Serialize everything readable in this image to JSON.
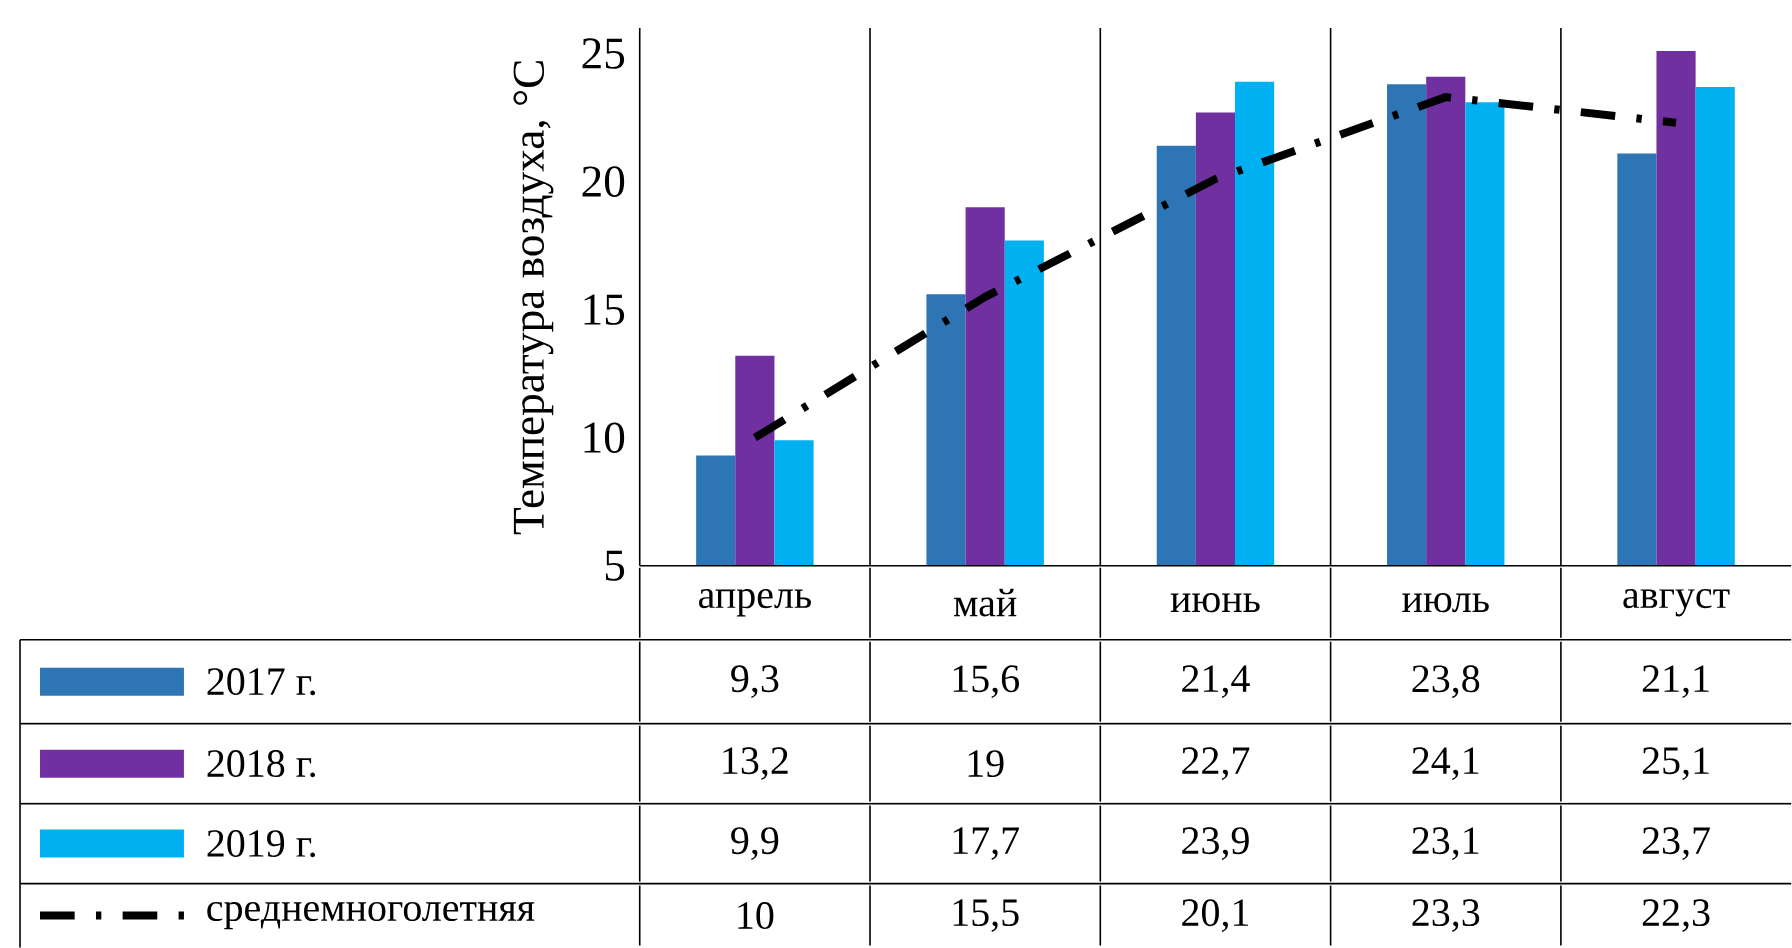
{
  "chart_data": {
    "type": "bar",
    "ylabel": "Температура воздуха, °С",
    "categories": [
      "апрель",
      "май",
      "июнь",
      "июль",
      "август"
    ],
    "ylim": [
      5,
      26
    ],
    "yticks": [
      5,
      10,
      15,
      20,
      25
    ],
    "legend": "bottom",
    "series": [
      {
        "name": "2017 г.",
        "color": "#2e75b6",
        "values": [
          9.3,
          15.6,
          21.4,
          23.8,
          21.1
        ],
        "value_labels": [
          "9,3",
          "15,6",
          "21,4",
          "23,8",
          "21,1"
        ]
      },
      {
        "name": "2018 г.",
        "color": "#7030a0",
        "values": [
          13.2,
          19,
          22.7,
          24.1,
          25.1
        ],
        "value_labels": [
          "13,2",
          "19",
          "22,7",
          "24,1",
          "25,1"
        ]
      },
      {
        "name": "2019 г.",
        "color": "#00b0f0",
        "values": [
          9.9,
          17.7,
          23.9,
          23.1,
          23.7
        ],
        "value_labels": [
          "9,9",
          "17,7",
          "23,9",
          "23,1",
          "23,7"
        ]
      },
      {
        "name": "среднемноголетняя",
        "type": "line",
        "color": "#000000",
        "line_style": "dashed",
        "values": [
          10,
          15.5,
          20.1,
          23.3,
          22.3
        ],
        "value_labels": [
          "10",
          "15,5",
          "20,1",
          "23,3",
          "22,3"
        ]
      }
    ]
  }
}
